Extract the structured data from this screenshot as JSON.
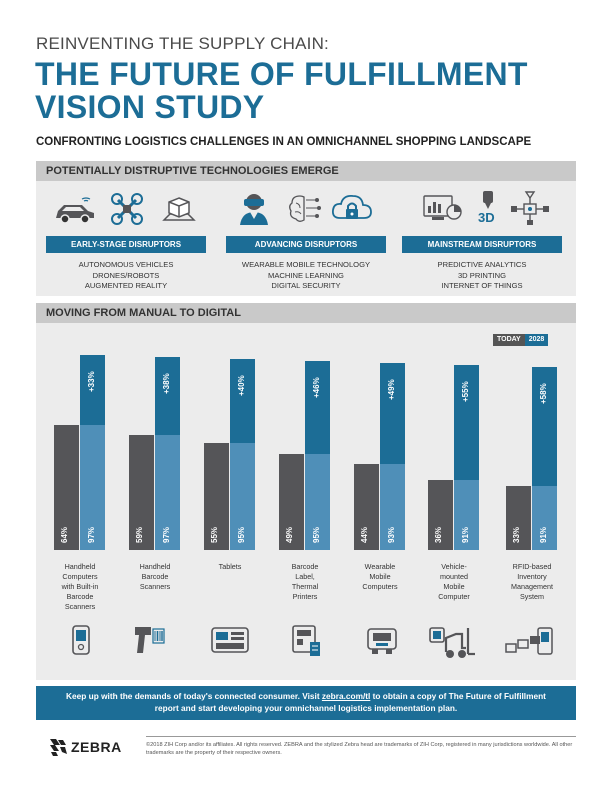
{
  "header": {
    "kicker": "REINVENTING THE SUPPLY CHAIN:",
    "title_line1": "THE FUTURE OF FULFILLMENT",
    "title_line2": "VISION STUDY",
    "subtitle": "CONFRONTING LOGISTICS CHALLENGES IN AN OMNICHANNEL SHOPPING LANDSCAPE"
  },
  "disruptive": {
    "heading": "POTENTIALLY DISTRUPTIVE TECHNOLOGIES EMERGE",
    "groups": [
      {
        "label": "EARLY-STAGE DISRUPTORS",
        "items": [
          "AUTONOMOUS VEHICLES",
          "DRONES/ROBOTS",
          "AUGMENTED REALITY"
        ]
      },
      {
        "label": "ADVANCING DISRUPTORS",
        "items": [
          "WEARABLE MOBILE TECHNOLOGY",
          "MACHINE LEARNING",
          "DIGITAL SECURITY"
        ]
      },
      {
        "label": "MAINSTREAM DISRUPTORS",
        "items": [
          "PREDICTIVE ANALYTICS",
          "3D PRINTING",
          "INTERNET OF THINGS"
        ]
      }
    ],
    "icons": [
      "car-icon",
      "drone-icon",
      "ar-box-icon",
      "vr-headset-icon",
      "brain-icon",
      "cloud-lock-icon",
      "analytics-icon",
      "3d-printer-icon",
      "iot-network-icon"
    ],
    "printer_label": "3D"
  },
  "digital": {
    "heading": "MOVING FROM MANUAL TO DIGITAL",
    "legend_today": "TODAY",
    "legend_2028": "2028"
  },
  "chart_data": {
    "type": "bar",
    "title": "MOVING FROM MANUAL TO DIGITAL",
    "series": [
      {
        "name": "TODAY",
        "values": [
          64,
          59,
          55,
          49,
          44,
          36,
          33
        ]
      },
      {
        "name": "2028",
        "values": [
          97,
          97,
          95,
          95,
          93,
          91,
          91
        ]
      }
    ],
    "growth_labels": [
      "+33%",
      "+38%",
      "+40%",
      "+46%",
      "+49%",
      "+55%",
      "+58%"
    ],
    "today_labels": [
      "64%",
      "59%",
      "55%",
      "49%",
      "44%",
      "36%",
      "33%"
    ],
    "future_labels": [
      "97%",
      "97%",
      "95%",
      "95%",
      "93%",
      "91%",
      "91%"
    ],
    "categories": [
      [
        "Handheld",
        "Computers",
        "with Built-in",
        "Barcode",
        "Scanners"
      ],
      [
        "Handheld",
        "Barcode",
        "Scanners"
      ],
      [
        "Tablets"
      ],
      [
        "Barcode",
        "Label,",
        "Thermal",
        "Printers"
      ],
      [
        "Wearable",
        "Mobile",
        "Computers"
      ],
      [
        "Vehicle-",
        "mounted",
        "Mobile",
        "Computer"
      ],
      [
        "RFID-based",
        "Inventory",
        "Management",
        "System"
      ]
    ],
    "ylim": [
      0,
      100
    ]
  },
  "cta": {
    "part1": "Keep up with the demands of today's connected consumer. Visit ",
    "link": "zebra.com/tl",
    "part2": " to obtain a copy of The Future of Fulfillment",
    "line2": "report and start developing your omnichannel logistics implementation plan."
  },
  "footer": {
    "brand": "ZEBRA",
    "legal": "©2018 ZIH Corp and/or its affiliates. All rights reserved. ZEBRA and the stylized Zebra head are trademarks of ZIH Corp, registered in many jurisdictions worldwide. All other trademarks are the property of their respective owners."
  },
  "colors": {
    "brand_blue": "#1c6d96",
    "light_blue": "#4f8fb8",
    "dark_gray": "#555558",
    "band_gray": "#c9c9c9",
    "panel_gray": "#ececec"
  }
}
